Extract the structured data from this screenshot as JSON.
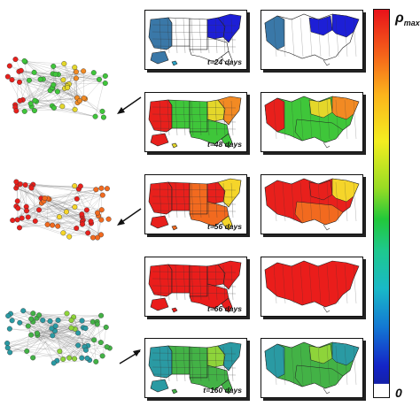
{
  "colorbar": {
    "max_label_rho": "ρ",
    "max_label_sub": "max",
    "min_label": "0"
  },
  "panels": [
    {
      "time_label": "t=24 days",
      "state": "early",
      "network_color": ""
    },
    {
      "time_label": "t=48 days",
      "state": "spread",
      "network_color": "green-orange"
    },
    {
      "time_label": "t=56 days",
      "state": "peak-spread",
      "network_color": "red-orange"
    },
    {
      "time_label": "t=66 days",
      "state": "saturated",
      "network_color": ""
    },
    {
      "time_label": "t=160 days",
      "state": "decline",
      "network_color": "teal"
    }
  ],
  "colors": {
    "early_blue": "#1d1fd6",
    "early_steel": "#3a78a8",
    "early_cyan": "#2aa3c6",
    "spread_green": "#3fc63a",
    "spread_yellow": "#e4d72a",
    "spread_orange": "#f28a23",
    "peak_red": "#e8201c",
    "peak_orange": "#f26a1f",
    "peak_yellow": "#f5d52a",
    "saturated_red": "#ea1d1b",
    "decline_green": "#43b246",
    "decline_teal": "#2a9aa3",
    "decline_lime": "#8ed43a"
  }
}
